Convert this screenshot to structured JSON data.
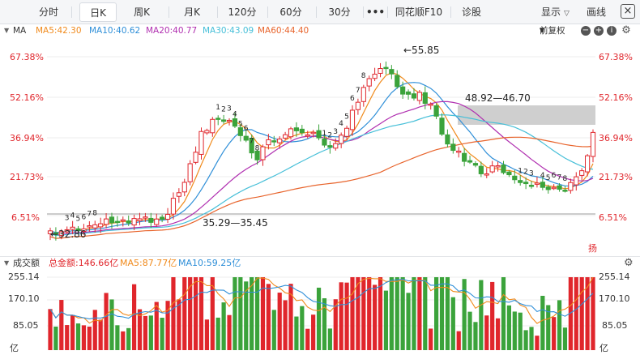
{
  "toolbar": {
    "tabs": [
      {
        "label": "分时",
        "active": false
      },
      {
        "label": "日K",
        "active": true
      },
      {
        "label": "周K",
        "active": false
      },
      {
        "label": "月K",
        "active": false
      },
      {
        "label": "120分",
        "active": false
      },
      {
        "label": "60分",
        "active": false
      },
      {
        "label": "30分",
        "active": false
      },
      {
        "label": "•••",
        "active": false
      },
      {
        "label": "同花顺F10",
        "active": false
      },
      {
        "label": "诊股",
        "active": false
      }
    ],
    "display_label": "显示",
    "draw_label": "画线",
    "close_label": "×"
  },
  "indicators": {
    "name": "MA",
    "ma5": "MA5:42.30",
    "ma10": "MA10:40.62",
    "ma20": "MA20:40.77",
    "ma30": "MA30:43.09",
    "ma60": "MA60:44.40",
    "adjust_label": "前复权"
  },
  "colors": {
    "up": "#e0262c",
    "down": "#3ba33b",
    "ma5": "#f08a1c",
    "ma10": "#2f8fd8",
    "ma20": "#b02fb0",
    "ma30": "#46bfd8",
    "ma60": "#e8642c"
  },
  "price_axis": {
    "labels": [
      "67.38%",
      "52.16%",
      "36.94%",
      "21.73%",
      "6.51%"
    ]
  },
  "annotations": {
    "high": "←55.85",
    "range_high": "48.92—46.70",
    "range_low": "35.29—35.45",
    "low": "←32.86",
    "badge_char": "扬"
  },
  "volume": {
    "title": "成交额",
    "total": "总金额:146.66亿",
    "ma5": "MA5:87.77亿",
    "ma10": "MA10:59.25亿",
    "axis_labels": [
      "255.14",
      "170.10",
      "85.05"
    ],
    "unit": "亿"
  },
  "chart_data": {
    "type": "candlestick",
    "candle_count": 98,
    "price_range": [
      27.25,
      57.67
    ],
    "y_tick_labels": [
      "67.38%",
      "52.16%",
      "36.94%",
      "21.73%",
      "6.51%"
    ],
    "volume_tick_labels": [
      "255.14",
      "170.10",
      "85.05"
    ],
    "series": [
      {
        "name": "MA5",
        "value": 42.3
      },
      {
        "name": "MA10",
        "value": 40.62
      },
      {
        "name": "MA20",
        "value": 40.77
      },
      {
        "name": "MA30",
        "value": 43.09
      },
      {
        "name": "MA60",
        "value": 44.4
      }
    ],
    "annotations": {
      "max": 55.85,
      "min": 32.86
    }
  }
}
